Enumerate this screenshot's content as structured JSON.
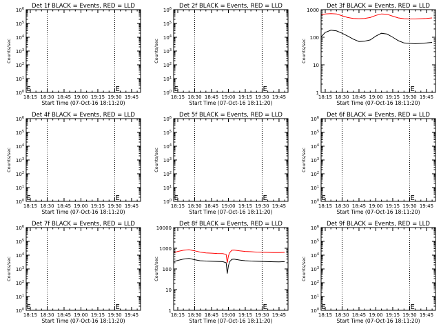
{
  "chart_data": [
    {
      "type": "line",
      "title": "Det 1f BLACK = Events, RED = LLD",
      "ylabel": "Counts/sec",
      "xlabel": "Start Time (07-Oct-16 18:11:20)",
      "y_scale": "log",
      "ylim": [
        1,
        1000000
      ],
      "y_ticks": [
        1,
        10,
        100,
        1000,
        10000,
        100000,
        1000000
      ],
      "y_tick_labels": [
        "10^0",
        "10^1",
        "10^2",
        "10^3",
        "10^4",
        "10^5",
        "10^6"
      ],
      "x_ticks": [
        "18:15",
        "18:30",
        "18:45",
        "19:00",
        "19:15",
        "19:30",
        "19:45"
      ],
      "vlines": [
        "18:30",
        "19:30"
      ],
      "markers": [
        {
          "label": "E",
          "x": "18:11"
        },
        {
          "label": "E",
          "x": "19:30"
        }
      ],
      "series": []
    },
    {
      "type": "line",
      "title": "Det 2f BLACK = Events, RED = LLD",
      "ylabel": "Counts/sec",
      "xlabel": "Start Time (07-Oct-16 18:11:20)",
      "y_scale": "log",
      "ylim": [
        1,
        1000000
      ],
      "y_ticks": [
        1,
        10,
        100,
        1000,
        10000,
        100000,
        1000000
      ],
      "y_tick_labels": [
        "10^0",
        "10^1",
        "10^2",
        "10^3",
        "10^4",
        "10^5",
        "10^6"
      ],
      "x_ticks": [
        "18:15",
        "18:30",
        "18:45",
        "19:00",
        "19:15",
        "19:30",
        "19:45"
      ],
      "vlines": [
        "18:30",
        "19:30"
      ],
      "markers": [
        {
          "label": "E",
          "x": "18:11"
        },
        {
          "label": "E",
          "x": "19:30"
        }
      ],
      "series": []
    },
    {
      "type": "line",
      "title": "Det 3f BLACK = Events, RED = LLD",
      "ylabel": "Counts/sec",
      "xlabel": "Start Time (07-Oct-16 18:11:20)",
      "y_scale": "log",
      "ylim": [
        1,
        1000
      ],
      "y_ticks": [
        1,
        10,
        100,
        1000
      ],
      "y_tick_labels": [
        "1",
        "10",
        "100",
        "1000"
      ],
      "x_ticks": [
        "18:15",
        "18:30",
        "18:45",
        "19:00",
        "19:15",
        "19:30",
        "19:45"
      ],
      "vlines": [
        "18:30",
        "19:30"
      ],
      "markers": [
        {
          "label": "E",
          "x": "19:30"
        }
      ],
      "series": [
        {
          "color": "#ff0000",
          "x": [
            "18:11",
            "18:15",
            "18:20",
            "18:25",
            "18:30",
            "18:35",
            "18:40",
            "18:45",
            "18:50",
            "18:55",
            "19:00",
            "19:05",
            "19:10",
            "19:15",
            "19:20",
            "19:25",
            "19:30",
            "19:35",
            "19:40",
            "19:45",
            "19:50"
          ],
          "y": [
            650,
            700,
            720,
            700,
            600,
            520,
            480,
            470,
            480,
            520,
            620,
            700,
            680,
            580,
            500,
            470,
            460,
            460,
            470,
            480,
            500
          ]
        },
        {
          "color": "#000000",
          "x": [
            "18:11",
            "18:15",
            "18:20",
            "18:25",
            "18:30",
            "18:35",
            "18:40",
            "18:45",
            "18:50",
            "18:55",
            "19:00",
            "19:05",
            "19:10",
            "19:15",
            "19:20",
            "19:25",
            "19:30",
            "19:35",
            "19:40",
            "19:45",
            "19:50"
          ],
          "y": [
            100,
            150,
            180,
            170,
            140,
            110,
            85,
            70,
            72,
            80,
            110,
            140,
            130,
            100,
            75,
            62,
            60,
            58,
            60,
            62,
            65
          ]
        }
      ]
    },
    {
      "type": "line",
      "title": "Det 4f BLACK = Events, RED = LLD",
      "ylabel": "Counts/sec",
      "xlabel": "Start Time (07-Oct-16 18:11:20)",
      "y_scale": "log",
      "ylim": [
        1,
        1000000
      ],
      "y_ticks": [
        1,
        10,
        100,
        1000,
        10000,
        100000,
        1000000
      ],
      "y_tick_labels": [
        "10^0",
        "10^1",
        "10^2",
        "10^3",
        "10^4",
        "10^5",
        "10^6"
      ],
      "x_ticks": [
        "18:15",
        "18:30",
        "18:45",
        "19:00",
        "19:15",
        "19:30",
        "19:45"
      ],
      "vlines": [
        "18:30",
        "19:30"
      ],
      "markers": [
        {
          "label": "E",
          "x": "18:11"
        },
        {
          "label": "E",
          "x": "19:30"
        }
      ],
      "series": []
    },
    {
      "type": "line",
      "title": "Det 5f BLACK = Events, RED = LLD",
      "ylabel": "Counts/sec",
      "xlabel": "Start Time (07-Oct-16 18:11:20)",
      "y_scale": "log",
      "ylim": [
        1,
        1000000
      ],
      "y_ticks": [
        1,
        10,
        100,
        1000,
        10000,
        100000,
        1000000
      ],
      "y_tick_labels": [
        "10^0",
        "10^1",
        "10^2",
        "10^3",
        "10^4",
        "10^5",
        "10^6"
      ],
      "x_ticks": [
        "18:15",
        "18:30",
        "18:45",
        "19:00",
        "19:15",
        "19:30",
        "19:45"
      ],
      "vlines": [
        "18:30",
        "19:30"
      ],
      "markers": [
        {
          "label": "E",
          "x": "18:11"
        },
        {
          "label": "E",
          "x": "19:30"
        }
      ],
      "series": []
    },
    {
      "type": "line",
      "title": "Det 6f BLACK = Events, RED = LLD",
      "ylabel": "Counts/sec",
      "xlabel": "Start Time (07-Oct-16 18:11:20)",
      "y_scale": "log",
      "ylim": [
        1,
        1000000
      ],
      "y_ticks": [
        1,
        10,
        100,
        1000,
        10000,
        100000,
        1000000
      ],
      "y_tick_labels": [
        "10^0",
        "10^1",
        "10^2",
        "10^3",
        "10^4",
        "10^5",
        "10^6"
      ],
      "x_ticks": [
        "18:15",
        "18:30",
        "18:45",
        "19:00",
        "19:15",
        "19:30",
        "19:45"
      ],
      "vlines": [
        "18:30",
        "19:30"
      ],
      "markers": [
        {
          "label": "E",
          "x": "18:11"
        },
        {
          "label": "E",
          "x": "19:30"
        }
      ],
      "series": []
    },
    {
      "type": "line",
      "title": "Det 7f BLACK = Events, RED = LLD",
      "ylabel": "Counts/sec",
      "xlabel": "Start Time (07-Oct-16 18:11:20)",
      "y_scale": "log",
      "ylim": [
        1,
        1000000
      ],
      "y_ticks": [
        1,
        10,
        100,
        1000,
        10000,
        100000,
        1000000
      ],
      "y_tick_labels": [
        "10^0",
        "10^1",
        "10^2",
        "10^3",
        "10^4",
        "10^5",
        "10^6"
      ],
      "x_ticks": [
        "18:15",
        "18:30",
        "18:45",
        "19:00",
        "19:15",
        "19:30",
        "19:45"
      ],
      "vlines": [
        "18:30",
        "19:30"
      ],
      "markers": [
        {
          "label": "E",
          "x": "18:11"
        },
        {
          "label": "E",
          "x": "19:30"
        }
      ],
      "series": []
    },
    {
      "type": "line",
      "title": "Det 8f BLACK = Events, RED = LLD",
      "ylabel": "Counts/sec",
      "xlabel": "Start Time (07-Oct-16 18:11:20)",
      "y_scale": "log",
      "ylim": [
        1,
        10000
      ],
      "y_ticks": [
        1,
        10,
        100,
        1000,
        10000
      ],
      "y_tick_labels": [
        "1",
        "10",
        "100",
        "1000",
        "10000"
      ],
      "x_ticks": [
        "18:15",
        "18:30",
        "18:45",
        "19:00",
        "19:15",
        "19:30",
        "19:45"
      ],
      "vlines": [
        "18:30",
        "19:30"
      ],
      "markers": [
        {
          "label": "E",
          "x": "19:30"
        }
      ],
      "series": [
        {
          "color": "#ff0000",
          "x": [
            "18:11",
            "18:15",
            "18:20",
            "18:25",
            "18:30",
            "18:35",
            "18:40",
            "18:45",
            "18:50",
            "18:55",
            "18:58",
            "18:59",
            "19:00",
            "19:01",
            "19:03",
            "19:05",
            "19:10",
            "19:15",
            "19:20",
            "19:25",
            "19:30",
            "19:35",
            "19:40",
            "19:45",
            "19:50"
          ],
          "y": [
            600,
            700,
            800,
            850,
            750,
            650,
            600,
            580,
            560,
            550,
            500,
            200,
            420,
            600,
            800,
            820,
            750,
            700,
            680,
            650,
            640,
            630,
            620,
            620,
            630
          ]
        },
        {
          "color": "#000000",
          "x": [
            "18:11",
            "18:15",
            "18:20",
            "18:25",
            "18:30",
            "18:35",
            "18:40",
            "18:45",
            "18:50",
            "18:55",
            "18:58",
            "18:59",
            "19:00",
            "19:01",
            "19:03",
            "19:05",
            "19:10",
            "19:15",
            "19:20",
            "19:25",
            "19:30",
            "19:35",
            "19:40",
            "19:45",
            "19:50"
          ],
          "y": [
            220,
            260,
            300,
            320,
            280,
            250,
            240,
            235,
            230,
            225,
            200,
            60,
            140,
            220,
            290,
            300,
            270,
            250,
            240,
            235,
            230,
            225,
            222,
            220,
            225
          ]
        }
      ]
    },
    {
      "type": "line",
      "title": "Det 9f BLACK = Events, RED = LLD",
      "ylabel": "Counts/sec",
      "xlabel": "Start Time (07-Oct-16 18:11:20)",
      "y_scale": "log",
      "ylim": [
        1,
        1000000
      ],
      "y_ticks": [
        1,
        10,
        100,
        1000,
        10000,
        100000,
        1000000
      ],
      "y_tick_labels": [
        "10^0",
        "10^1",
        "10^2",
        "10^3",
        "10^4",
        "10^5",
        "10^6"
      ],
      "x_ticks": [
        "18:15",
        "18:30",
        "18:45",
        "19:00",
        "19:15",
        "19:30",
        "19:45"
      ],
      "vlines": [
        "18:30",
        "19:30"
      ],
      "markers": [
        {
          "label": "E",
          "x": "18:11"
        },
        {
          "label": "E",
          "x": "19:30"
        }
      ],
      "series": []
    }
  ]
}
